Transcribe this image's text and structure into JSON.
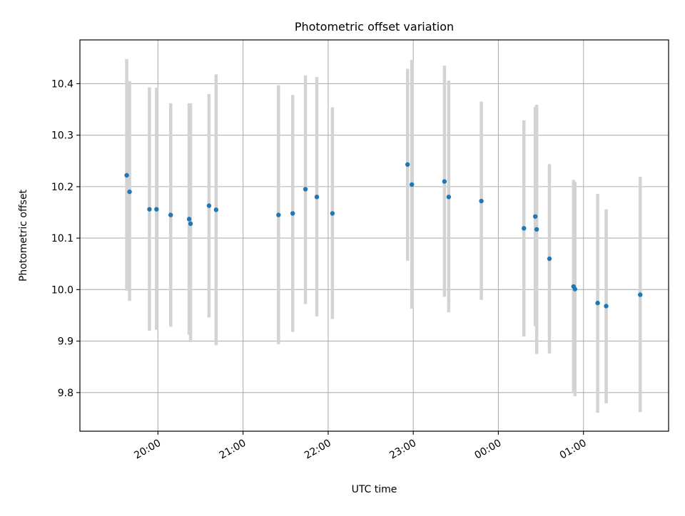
{
  "chart_data": {
    "type": "scatter",
    "title": "Photometric offset variation",
    "xlabel": "UTC time",
    "ylabel": "Photometric offset",
    "x_axis_kind": "time",
    "x_ticks": [
      "20:00",
      "21:00",
      "22:00",
      "23:00",
      "00:00",
      "01:00"
    ],
    "x_tick_labels_rotated": true,
    "y_ticks": [
      "9.8",
      "9.9",
      "10.0",
      "10.1",
      "10.2",
      "10.3",
      "10.4"
    ],
    "xlim": [
      "19:05",
      "02:00"
    ],
    "ylim": [
      9.725,
      10.485
    ],
    "grid": true,
    "point_color": "#1f77b4",
    "errorbar_color": "#d3d3d3",
    "series": [
      {
        "points": [
          {
            "t": "19:38",
            "y": 10.222,
            "lo": 9.998,
            "hi": 10.448
          },
          {
            "t": "19:40",
            "y": 10.19,
            "lo": 9.978,
            "hi": 10.405
          },
          {
            "t": "19:54",
            "y": 10.156,
            "lo": 9.92,
            "hi": 10.393
          },
          {
            "t": "19:59",
            "y": 10.156,
            "lo": 9.922,
            "hi": 10.392
          },
          {
            "t": "20:09",
            "y": 10.145,
            "lo": 9.928,
            "hi": 10.362
          },
          {
            "t": "20:22",
            "y": 10.137,
            "lo": 9.912,
            "hi": 10.362
          },
          {
            "t": "20:23",
            "y": 10.128,
            "lo": 9.898,
            "hi": 10.362
          },
          {
            "t": "20:36",
            "y": 10.163,
            "lo": 9.946,
            "hi": 10.38
          },
          {
            "t": "20:41",
            "y": 10.155,
            "lo": 9.892,
            "hi": 10.418
          },
          {
            "t": "21:25",
            "y": 10.145,
            "lo": 9.894,
            "hi": 10.397
          },
          {
            "t": "21:35",
            "y": 10.148,
            "lo": 9.918,
            "hi": 10.378
          },
          {
            "t": "21:44",
            "y": 10.195,
            "lo": 9.972,
            "hi": 10.416
          },
          {
            "t": "21:52",
            "y": 10.18,
            "lo": 9.948,
            "hi": 10.413
          },
          {
            "t": "22:03",
            "y": 10.148,
            "lo": 9.943,
            "hi": 10.354
          },
          {
            "t": "22:56",
            "y": 10.243,
            "lo": 10.056,
            "hi": 10.429
          },
          {
            "t": "22:59",
            "y": 10.204,
            "lo": 9.963,
            "hi": 10.446
          },
          {
            "t": "23:22",
            "y": 10.21,
            "lo": 9.986,
            "hi": 10.435
          },
          {
            "t": "23:25",
            "y": 10.18,
            "lo": 9.956,
            "hi": 10.406
          },
          {
            "t": "23:48",
            "y": 10.172,
            "lo": 9.98,
            "hi": 10.365
          },
          {
            "t": "00:18",
            "y": 10.119,
            "lo": 9.909,
            "hi": 10.329
          },
          {
            "t": "00:26",
            "y": 10.142,
            "lo": 9.929,
            "hi": 10.355
          },
          {
            "t": "00:27",
            "y": 10.117,
            "lo": 9.875,
            "hi": 10.359
          },
          {
            "t": "00:36",
            "y": 10.06,
            "lo": 9.876,
            "hi": 10.244
          },
          {
            "t": "00:53",
            "y": 10.006,
            "lo": 9.799,
            "hi": 10.213
          },
          {
            "t": "00:54",
            "y": 10.001,
            "lo": 9.793,
            "hi": 10.209
          },
          {
            "t": "01:10",
            "y": 9.974,
            "lo": 9.761,
            "hi": 10.186
          },
          {
            "t": "01:16",
            "y": 9.968,
            "lo": 9.779,
            "hi": 10.156
          },
          {
            "t": "01:40",
            "y": 9.99,
            "lo": 9.762,
            "hi": 10.219
          }
        ]
      }
    ]
  }
}
